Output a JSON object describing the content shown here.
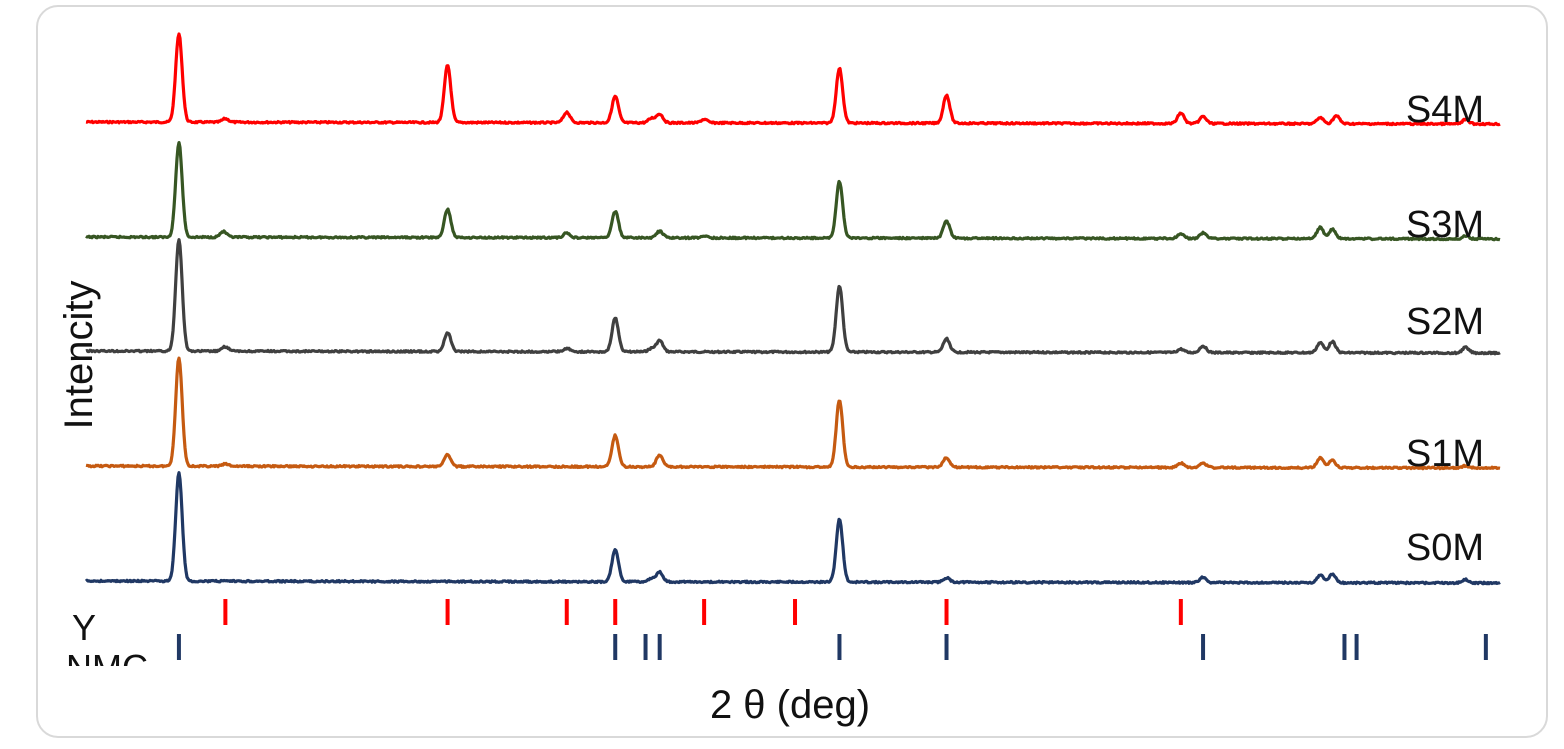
{
  "chart_data": {
    "type": "line",
    "xlabel": "2 θ (deg)",
    "ylabel": "Intencity",
    "xlim": [
      10,
      80
    ],
    "grid": false,
    "legend": "inline-right",
    "series": [
      {
        "name": "S4M",
        "color": "#ff0000",
        "peaks": [
          [
            14.6,
            1.0
          ],
          [
            16.9,
            0.04
          ],
          [
            27.9,
            0.65
          ],
          [
            33.8,
            0.12
          ],
          [
            36.2,
            0.3
          ],
          [
            38.0,
            0.05
          ],
          [
            38.4,
            0.1
          ],
          [
            40.6,
            0.04
          ],
          [
            47.3,
            0.62
          ],
          [
            52.6,
            0.32
          ],
          [
            64.2,
            0.12
          ],
          [
            65.3,
            0.08
          ],
          [
            71.1,
            0.07
          ],
          [
            71.9,
            0.09
          ],
          [
            78.3,
            0.05
          ]
        ]
      },
      {
        "name": "S3M",
        "color": "#375623",
        "peaks": [
          [
            14.6,
            1.0
          ],
          [
            16.8,
            0.06
          ],
          [
            27.9,
            0.3
          ],
          [
            33.8,
            0.05
          ],
          [
            36.2,
            0.28
          ],
          [
            38.4,
            0.07
          ],
          [
            40.6,
            0.02
          ],
          [
            47.3,
            0.6
          ],
          [
            52.6,
            0.18
          ],
          [
            64.2,
            0.05
          ],
          [
            65.3,
            0.06
          ],
          [
            71.1,
            0.12
          ],
          [
            71.7,
            0.1
          ],
          [
            78.3,
            0.03
          ]
        ]
      },
      {
        "name": "S2M",
        "color": "#404040",
        "peaks": [
          [
            14.6,
            1.0
          ],
          [
            16.9,
            0.04
          ],
          [
            27.9,
            0.17
          ],
          [
            33.8,
            0.03
          ],
          [
            36.2,
            0.3
          ],
          [
            38.0,
            0.03
          ],
          [
            38.4,
            0.1
          ],
          [
            47.3,
            0.59
          ],
          [
            52.6,
            0.12
          ],
          [
            64.2,
            0.03
          ],
          [
            65.3,
            0.06
          ],
          [
            71.1,
            0.09
          ],
          [
            71.7,
            0.1
          ],
          [
            78.3,
            0.05
          ]
        ]
      },
      {
        "name": "S1M",
        "color": "#c55a11",
        "peaks": [
          [
            14.6,
            1.0
          ],
          [
            16.9,
            0.02
          ],
          [
            27.9,
            0.11
          ],
          [
            36.2,
            0.29
          ],
          [
            38.4,
            0.11
          ],
          [
            47.3,
            0.62
          ],
          [
            52.6,
            0.09
          ],
          [
            64.2,
            0.04
          ],
          [
            65.3,
            0.04
          ],
          [
            71.1,
            0.09
          ],
          [
            71.7,
            0.07
          ],
          [
            78.3,
            0.02
          ]
        ]
      },
      {
        "name": "S0M",
        "color": "#203864",
        "peaks": [
          [
            14.6,
            1.0
          ],
          [
            36.2,
            0.3
          ],
          [
            38.0,
            0.03
          ],
          [
            38.4,
            0.09
          ],
          [
            47.3,
            0.58
          ],
          [
            52.6,
            0.04
          ],
          [
            65.3,
            0.05
          ],
          [
            71.1,
            0.07
          ],
          [
            71.7,
            0.08
          ],
          [
            78.3,
            0.03
          ]
        ]
      }
    ],
    "reference_ticks": [
      {
        "name": "Y",
        "color": "#ff0000",
        "positions": [
          16.9,
          27.9,
          33.8,
          36.2,
          40.6,
          45.1,
          52.6,
          64.2
        ]
      },
      {
        "name": "NMC",
        "color": "#203864",
        "positions": [
          14.6,
          36.2,
          37.7,
          38.4,
          47.3,
          52.6,
          65.3,
          72.3,
          72.9,
          79.3
        ]
      }
    ]
  }
}
